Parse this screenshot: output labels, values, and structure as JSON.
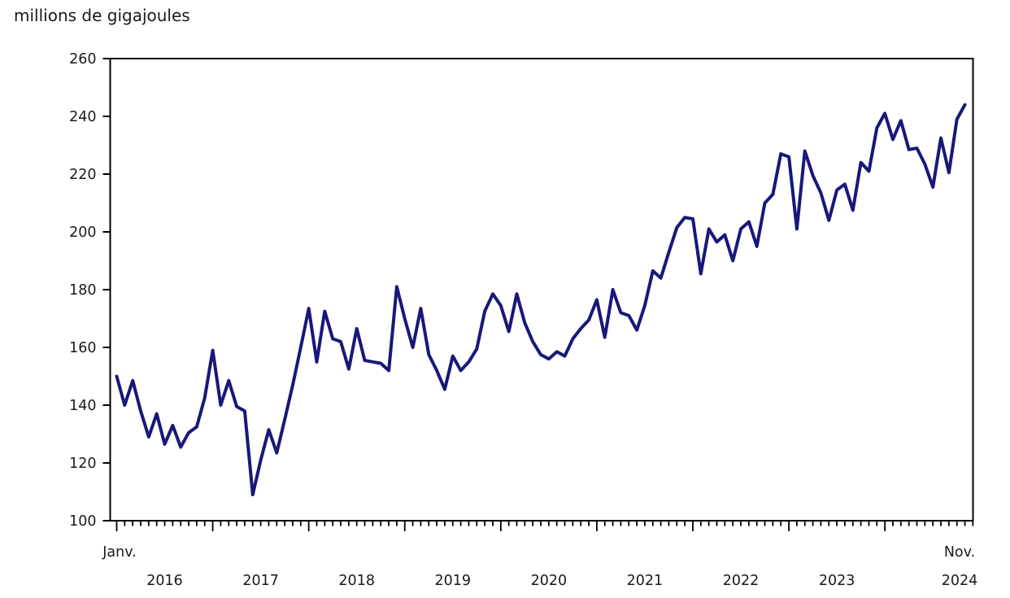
{
  "title": "millions de gigajoules",
  "colors": {
    "line": "#18187a",
    "axis": "#000000",
    "text": "#1a1a1a"
  },
  "y_axis": {
    "tick_labels": [
      "100",
      "120",
      "140",
      "160",
      "180",
      "200",
      "220",
      "240",
      "260"
    ],
    "min": 100,
    "max": 260,
    "step": 20
  },
  "x_axis": {
    "first_point_label": "Janv.",
    "last_point_label": "Nov.",
    "year_labels": [
      "2016",
      "2017",
      "2018",
      "2019",
      "2020",
      "2021",
      "2022",
      "2023",
      "2024"
    ]
  },
  "chart_data": {
    "type": "line",
    "title": "millions de gigajoules",
    "ylabel": "millions de gigajoules",
    "ylim": [
      100,
      260
    ],
    "grid": false,
    "legend": "none",
    "x_start": "Janv. 2016",
    "x_end": "Nov. 2024",
    "x_frequency": "monthly",
    "series": [
      {
        "name": "millions de gigajoules",
        "values": [
          150,
          140,
          148.5,
          138,
          129,
          137,
          126.5,
          133,
          125.5,
          130.5,
          132.5,
          142.5,
          159,
          140,
          148.5,
          139.5,
          138,
          109,
          121,
          131.5,
          123.5,
          135,
          147,
          160,
          173.5,
          155,
          172.5,
          163,
          162,
          152.5,
          166.5,
          155.5,
          155,
          154.5,
          152,
          181,
          170,
          160,
          173.5,
          157.5,
          152,
          145.5,
          157,
          152,
          155,
          159.5,
          172.5,
          178.5,
          174.5,
          165.5,
          178.5,
          168.5,
          162,
          157.5,
          156,
          158.5,
          157,
          163,
          166.5,
          169.5,
          176.5,
          163.5,
          180,
          172,
          171,
          166,
          174.5,
          186.5,
          184,
          193,
          201.5,
          205,
          204.5,
          185.5,
          201,
          196.5,
          199,
          190,
          201,
          203.5,
          195,
          210,
          213,
          227,
          226,
          201,
          228,
          219.5,
          213.5,
          204,
          214.5,
          216.5,
          207.5,
          224,
          221,
          236,
          241,
          232,
          238.5,
          228.5,
          229,
          223.5,
          215.5,
          232.5,
          220.5,
          239,
          244
        ]
      }
    ]
  }
}
